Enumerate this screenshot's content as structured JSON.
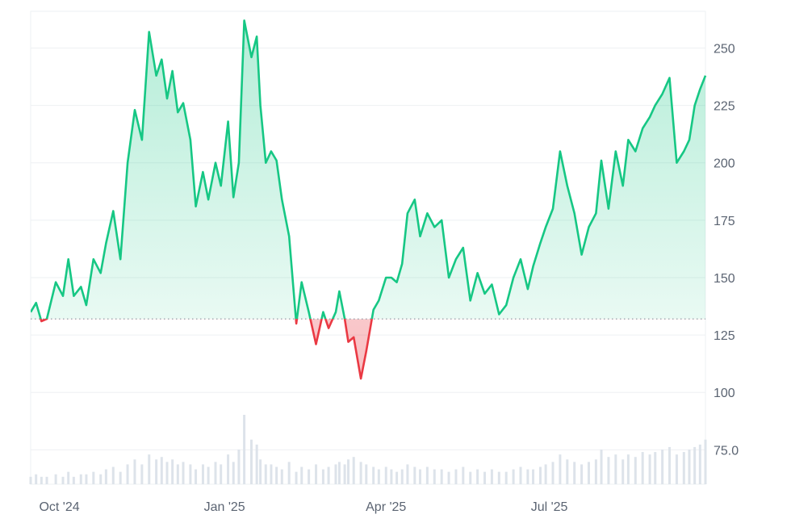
{
  "chart_data": {
    "type": "area",
    "y_ticks": [
      "250",
      "225",
      "200",
      "175",
      "150",
      "125",
      "100",
      "75.0"
    ],
    "y_tick_values": [
      250,
      225,
      200,
      175,
      150,
      125,
      100,
      75
    ],
    "x_ticks": [
      "Oct '24",
      "Jan '25",
      "Apr '25",
      "Jul '25"
    ],
    "x_tick_dates": [
      "2024-10-01",
      "2025-01-01",
      "2025-04-01",
      "2025-07-01"
    ],
    "x_range": [
      "2024-09-15",
      "2025-09-26"
    ],
    "ylim": [
      60,
      266
    ],
    "baseline": 132,
    "grid": true,
    "colors": {
      "up": "#16c784",
      "down": "#ea3943",
      "grid": "#eef0f3",
      "volume": "#dde3ea"
    },
    "x": [
      "2024-09-15",
      "2024-09-18",
      "2024-09-21",
      "2024-09-24",
      "2024-09-29",
      "2024-10-03",
      "2024-10-06",
      "2024-10-09",
      "2024-10-13",
      "2024-10-16",
      "2024-10-20",
      "2024-10-24",
      "2024-10-27",
      "2024-10-31",
      "2024-11-04",
      "2024-11-08",
      "2024-11-12",
      "2024-11-16",
      "2024-11-20",
      "2024-11-24",
      "2024-11-27",
      "2024-11-30",
      "2024-12-03",
      "2024-12-06",
      "2024-12-09",
      "2024-12-13",
      "2024-12-16",
      "2024-12-20",
      "2024-12-23",
      "2024-12-27",
      "2024-12-30",
      "2025-01-03",
      "2025-01-06",
      "2025-01-09",
      "2025-01-12",
      "2025-01-16",
      "2025-01-19",
      "2025-01-21",
      "2025-01-24",
      "2025-01-27",
      "2025-01-30",
      "2025-02-02",
      "2025-02-06",
      "2025-02-10",
      "2025-02-13",
      "2025-02-17",
      "2025-02-21",
      "2025-02-25",
      "2025-02-28",
      "2025-03-04",
      "2025-03-06",
      "2025-03-09",
      "2025-03-11",
      "2025-03-14",
      "2025-03-18",
      "2025-03-21",
      "2025-03-25",
      "2025-03-28",
      "2025-04-01",
      "2025-04-04",
      "2025-04-07",
      "2025-04-10",
      "2025-04-13",
      "2025-04-17",
      "2025-04-20",
      "2025-04-24",
      "2025-04-28",
      "2025-05-02",
      "2025-05-06",
      "2025-05-10",
      "2025-05-14",
      "2025-05-18",
      "2025-05-22",
      "2025-05-26",
      "2025-05-30",
      "2025-06-03",
      "2025-06-07",
      "2025-06-11",
      "2025-06-15",
      "2025-06-19",
      "2025-06-22",
      "2025-06-26",
      "2025-06-29",
      "2025-07-03",
      "2025-07-07",
      "2025-07-11",
      "2025-07-15",
      "2025-07-19",
      "2025-07-23",
      "2025-07-27",
      "2025-07-30",
      "2025-08-03",
      "2025-08-07",
      "2025-08-11",
      "2025-08-14",
      "2025-08-18",
      "2025-08-22",
      "2025-08-26",
      "2025-08-29",
      "2025-09-02",
      "2025-09-06",
      "2025-09-10",
      "2025-09-14",
      "2025-09-17",
      "2025-09-20",
      "2025-09-23",
      "2025-09-26"
    ],
    "y": [
      135,
      139,
      131,
      132,
      148,
      142,
      158,
      142,
      146,
      138,
      158,
      152,
      165,
      179,
      158,
      200,
      223,
      210,
      257,
      238,
      245,
      228,
      240,
      222,
      226,
      210,
      181,
      196,
      184,
      200,
      190,
      218,
      185,
      200,
      262,
      246,
      255,
      225,
      200,
      205,
      201,
      184,
      168,
      130,
      148,
      135,
      121,
      135,
      128,
      135,
      144,
      132,
      122,
      124,
      106,
      118,
      136,
      140,
      150,
      150,
      148,
      156,
      178,
      184,
      168,
      178,
      172,
      175,
      150,
      158,
      163,
      140,
      152,
      143,
      147,
      134,
      138,
      150,
      158,
      145,
      155,
      165,
      172,
      180,
      205,
      190,
      178,
      160,
      172,
      178,
      201,
      180,
      205,
      190,
      210,
      205,
      215,
      220,
      225,
      230,
      237,
      200,
      205,
      210,
      225,
      232,
      238
    ],
    "volume": [
      3,
      4,
      3,
      3,
      4,
      3,
      5,
      3,
      4,
      4,
      5,
      4,
      6,
      7,
      5,
      8,
      10,
      8,
      12,
      10,
      11,
      9,
      10,
      8,
      9,
      8,
      6,
      8,
      7,
      9,
      8,
      12,
      9,
      14,
      28,
      18,
      16,
      10,
      8,
      8,
      7,
      6,
      9,
      5,
      7,
      6,
      8,
      6,
      7,
      8,
      9,
      8,
      10,
      11,
      9,
      8,
      7,
      6,
      7,
      6,
      5,
      6,
      8,
      7,
      6,
      7,
      6,
      6,
      5,
      6,
      7,
      5,
      6,
      5,
      6,
      5,
      5,
      6,
      7,
      6,
      6,
      7,
      8,
      9,
      12,
      10,
      9,
      8,
      9,
      10,
      14,
      11,
      12,
      10,
      12,
      11,
      13,
      12,
      13,
      14,
      15,
      12,
      13,
      14,
      15,
      16,
      18
    ]
  }
}
